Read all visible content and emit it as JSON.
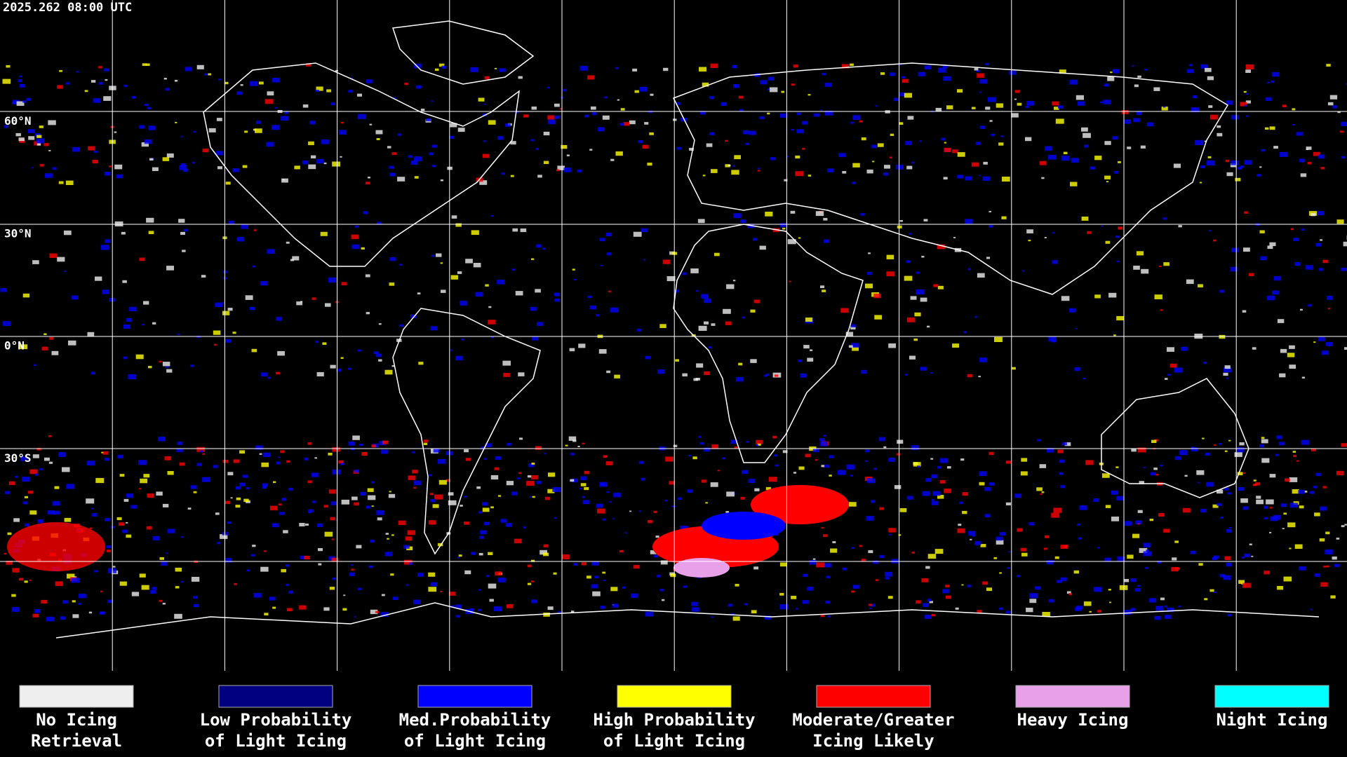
{
  "timestamp": "2025.262 08:00 UTC",
  "latitude_labels": [
    "60°N",
    "30°N",
    "0°N",
    "30°S"
  ],
  "legend": [
    {
      "lines": [
        "No Icing",
        "Retrieval"
      ],
      "color": "#eeeeee"
    },
    {
      "lines": [
        "Low Probability",
        "of Light Icing"
      ],
      "color": "#000080"
    },
    {
      "lines": [
        "Med.Probability",
        "of Light Icing"
      ],
      "color": "#0000ff"
    },
    {
      "lines": [
        "High Probability",
        "of Light Icing"
      ],
      "color": "#ffff00"
    },
    {
      "lines": [
        "Moderate/Greater",
        "Icing Likely"
      ],
      "color": "#ff0000"
    },
    {
      "lines": [
        "Heavy Icing"
      ],
      "color": "#e8a0e8"
    },
    {
      "lines": [
        "Night Icing"
      ],
      "color": "#00ffff"
    }
  ]
}
